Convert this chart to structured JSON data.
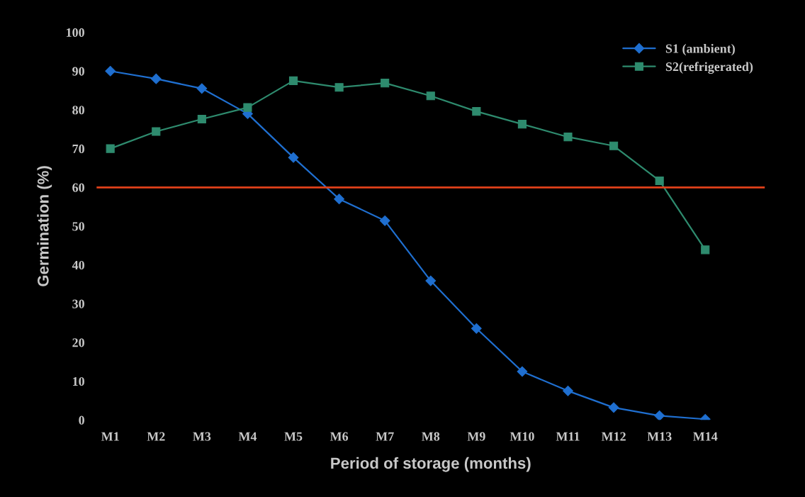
{
  "chart_data": {
    "type": "line",
    "xlabel": "Period of storage (months)",
    "ylabel": "Germination (%)",
    "categories": [
      "M1",
      "M2",
      "M3",
      "M4",
      "M5",
      "M6",
      "M7",
      "M8",
      "M9",
      "M10",
      "M11",
      "M12",
      "M13",
      "M14"
    ],
    "series": [
      {
        "name": "S1 (ambient)",
        "color": "#1f6fd0",
        "marker": "diamond",
        "values": [
          90,
          88,
          85.5,
          79,
          67.7,
          57,
          51.4,
          35.9,
          23.6,
          12.5,
          7.5,
          3.2,
          1.1,
          0.2
        ]
      },
      {
        "name": "S2(refrigerated)",
        "color": "#2e8b6e",
        "marker": "square",
        "values": [
          70,
          74.4,
          77.6,
          80.6,
          87.5,
          85.8,
          86.9,
          83.6,
          79.6,
          76.3,
          73,
          70.7,
          61.7,
          43.9
        ]
      }
    ],
    "ref_lines": [
      {
        "axis": "y",
        "value": 60,
        "color": "#e0401a"
      }
    ],
    "ylim": [
      0,
      100
    ],
    "yticks": [
      0,
      10,
      20,
      30,
      40,
      50,
      60,
      70,
      80,
      90,
      100
    ],
    "grid": false,
    "legend": "top right",
    "line_style": "solid"
  }
}
